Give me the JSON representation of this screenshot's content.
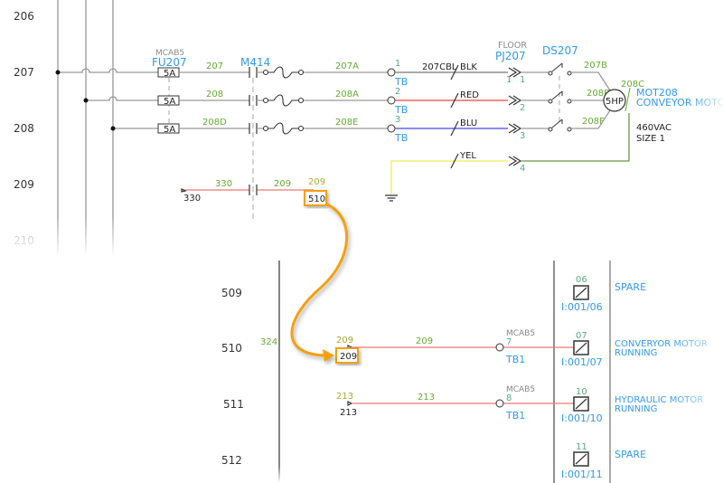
{
  "top": {
    "rungs": [
      "206",
      "207",
      "208",
      "209",
      "210"
    ],
    "fuse": {
      "ref": "MCAB5",
      "tag": "FU207",
      "ratings": [
        "5A",
        "5A",
        "5A"
      ]
    },
    "wires_left": [
      "207",
      "208",
      "208D"
    ],
    "starter": {
      "tag": "M414"
    },
    "wires_mid": [
      "207A",
      "208A",
      "208E"
    ],
    "terminals": [
      {
        "num": "1",
        "label": "TB"
      },
      {
        "num": "2",
        "label": "TB"
      },
      {
        "num": "3",
        "label": "TB"
      }
    ],
    "cable": {
      "name": "207CBL",
      "colors": [
        "BLK",
        "RED",
        "BLU",
        "YEL"
      ]
    },
    "plug": {
      "location": "FLOOR",
      "tag": "PJ207",
      "pins_left": [
        "1"
      ],
      "pins_right": [
        "1",
        "2",
        "3",
        "4"
      ]
    },
    "disconnect": {
      "tag": "DS207"
    },
    "wires_right": [
      "207B",
      "208B",
      "208F",
      "208C"
    ],
    "motor": {
      "rating": "5HP",
      "tag": "MOT208",
      "description": "CONVEYOR MOTOR",
      "voltage": "460VAC",
      "size": "SIZE 1"
    },
    "aux_rung": {
      "wire_in": "330",
      "wire_in_ref": "330",
      "wire_out": "209",
      "wire_out_ref_num": "209",
      "ref": "510"
    }
  },
  "bottom": {
    "rungs": [
      "509",
      "510",
      "511",
      "512"
    ],
    "rail_ref": "324",
    "rows": [
      {
        "src_wire": "209",
        "src_ref": "209",
        "wire": "209",
        "term_ref": "MCAB5",
        "term_num": "7",
        "term_label": "TB1",
        "input_num": "07",
        "input_addr": "I:001/07",
        "desc1": "CONVERYOR MOTOR",
        "desc2": "RUNNING"
      },
      {
        "src_wire": "213",
        "src_ref": "213",
        "wire": "213",
        "term_ref": "MCAB5",
        "term_num": "8",
        "term_label": "TB1",
        "input_num": "10",
        "input_addr": "I:001/10",
        "desc1": "HYDRAULIC MOTOR",
        "desc2": "RUNNING"
      }
    ],
    "spares": [
      {
        "input_num": "06",
        "input_addr": "I:001/06",
        "desc": "SPARE"
      },
      {
        "input_num": "11",
        "input_addr": "I:001/11",
        "desc": "SPARE"
      }
    ]
  },
  "colors": {
    "highlight": "#f5a011",
    "red_wire": "#ee4444",
    "blue_wire": "#6666ee",
    "yellow_wire": "#eeee55",
    "green_wire": "#669944"
  }
}
